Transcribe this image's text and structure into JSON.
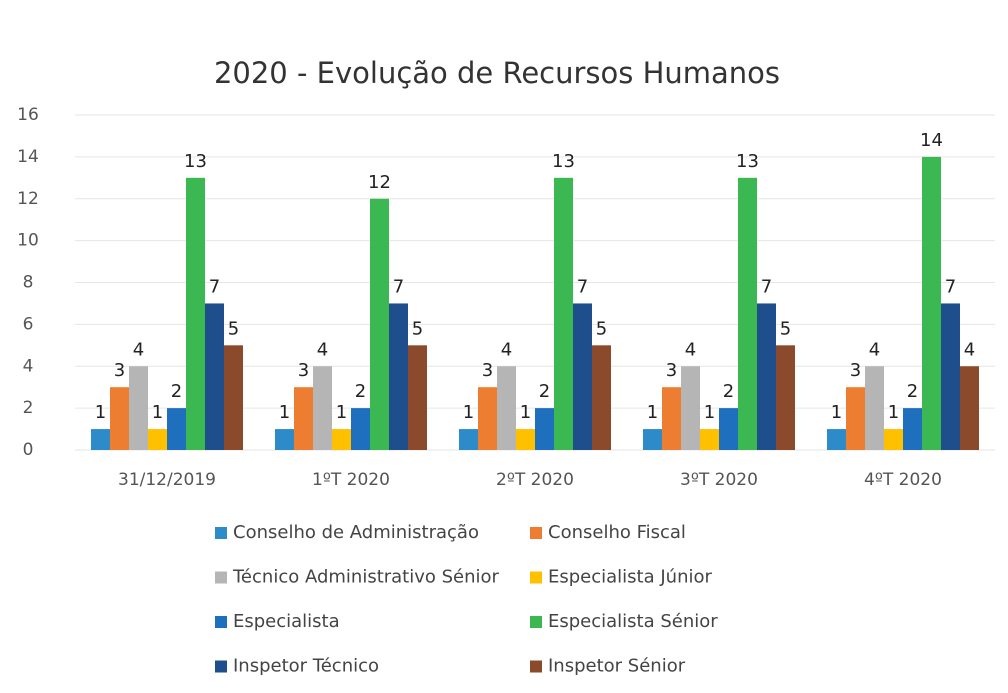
{
  "chart_data": {
    "type": "bar",
    "title": "2020 - Evolução de Recursos Humanos",
    "categories": [
      "31/12/2019",
      "1ºT 2020",
      "2ºT 2020",
      "3ºT 2020",
      "4ºT 2020"
    ],
    "series": [
      {
        "name": "Conselho de Administração",
        "color": "#2e8bc9",
        "values": [
          1,
          1,
          1,
          1,
          1
        ]
      },
      {
        "name": "Conselho Fiscal",
        "color": "#ed7d31",
        "values": [
          3,
          3,
          3,
          3,
          3
        ]
      },
      {
        "name": "Técnico Administrativo Sénior",
        "color": "#b5b5b5",
        "values": [
          4,
          4,
          4,
          4,
          4
        ]
      },
      {
        "name": "Especialista Júnior",
        "color": "#ffc000",
        "values": [
          1,
          1,
          1,
          1,
          1
        ]
      },
      {
        "name": "Especialista",
        "color": "#1f6fbf",
        "values": [
          2,
          2,
          2,
          2,
          2
        ]
      },
      {
        "name": "Especialista Sénior",
        "color": "#3cb853",
        "values": [
          13,
          12,
          13,
          13,
          14
        ]
      },
      {
        "name": "Inspetor Técnico",
        "color": "#1f4e8c",
        "values": [
          7,
          7,
          7,
          7,
          7
        ]
      },
      {
        "name": "Inspetor Sénior",
        "color": "#8b4a2b",
        "values": [
          5,
          5,
          5,
          5,
          4
        ]
      }
    ],
    "ylim": [
      0,
      16
    ],
    "yticks": [
      0,
      2,
      4,
      6,
      8,
      10,
      12,
      14,
      16
    ],
    "grid": true,
    "legend": "bottom"
  }
}
